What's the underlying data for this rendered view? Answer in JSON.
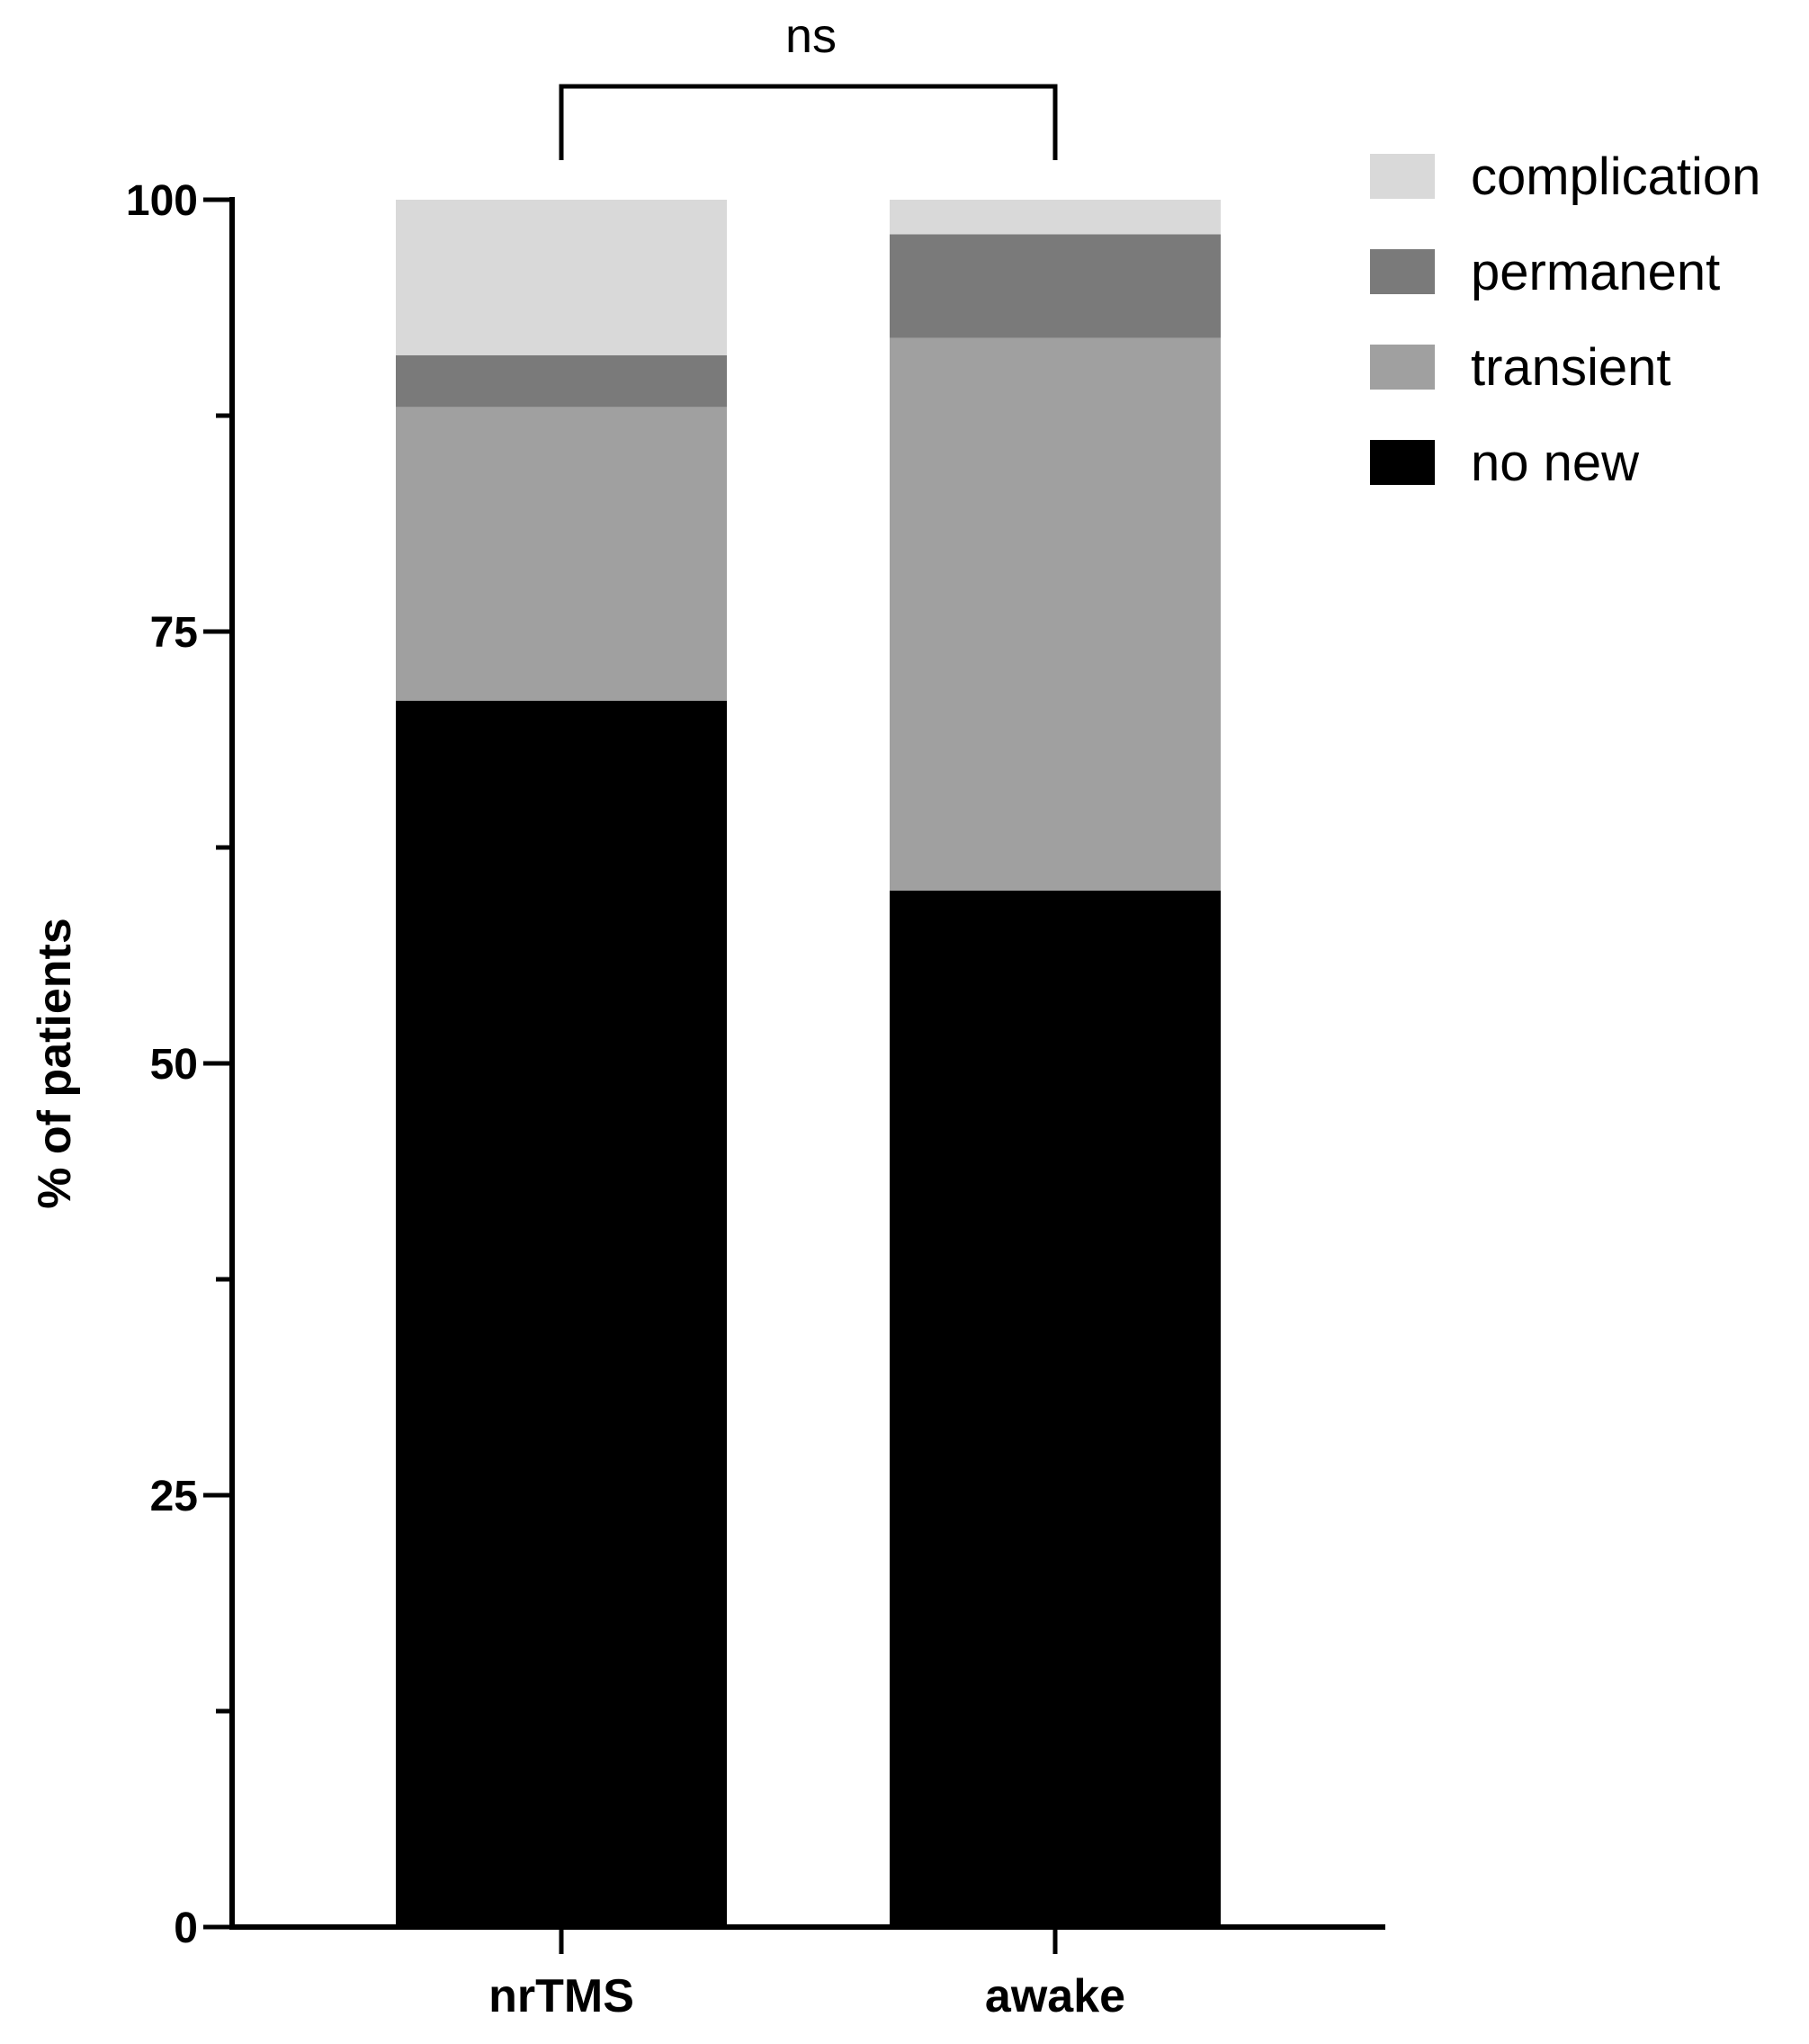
{
  "chart_data": {
    "type": "bar",
    "stacked": true,
    "categories": [
      "nrTMS",
      "awake"
    ],
    "series": [
      {
        "name": "no new",
        "color": "#000000",
        "values": [
          71.0,
          60.0
        ]
      },
      {
        "name": "transient",
        "color": "#a0a0a0",
        "values": [
          17.0,
          32.0
        ]
      },
      {
        "name": "permanent",
        "color": "#7a7a7a",
        "values": [
          3.0,
          6.0
        ]
      },
      {
        "name": "complication",
        "color": "#d9d9d9",
        "values": [
          9.0,
          2.0
        ]
      }
    ],
    "legend_order": [
      "complication",
      "permanent",
      "transient",
      "no new"
    ],
    "legend_position": "top-right",
    "ylabel": "% of patients",
    "xlabel": "",
    "ylim": [
      0,
      100
    ],
    "yticks": [
      "0",
      "25",
      "50",
      "75",
      "100"
    ],
    "minor_yticks": [
      12.5,
      37.5,
      62.5,
      87.5
    ],
    "grid": false,
    "annotation": {
      "text": "ns",
      "between": [
        "nrTMS",
        "awake"
      ]
    }
  }
}
